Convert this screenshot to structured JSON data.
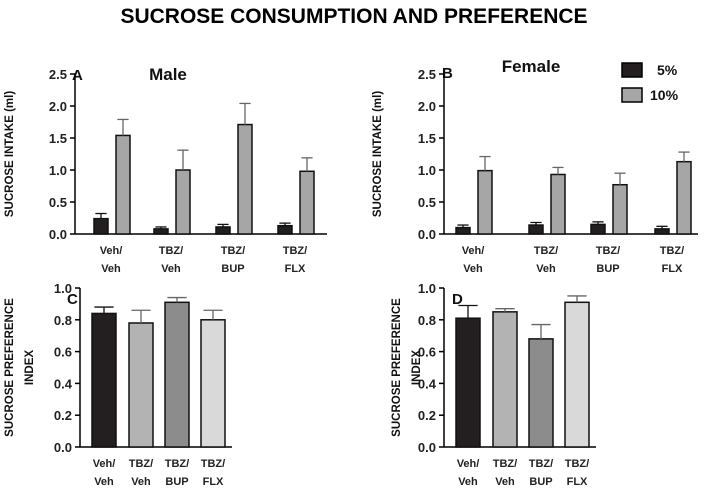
{
  "title": "SUCROSE CONSUMPTION AND PREFERENCE",
  "colors": {
    "c5": "#231f20",
    "c10": "#a6a6a6",
    "veh": "#231f20",
    "tbzveh": "#b3b3b3",
    "tbzbup": "#8c8c8c",
    "tbzflx": "#d9d9d9"
  },
  "chart_data": [
    {
      "panel": "A",
      "title": "Male",
      "type": "bar",
      "ylabel": "SUCROSE INTAKE (ml)",
      "ylim": [
        0,
        2.5
      ],
      "yticks": [
        "0.0",
        "0.5",
        "1.0",
        "1.5",
        "2.0",
        "2.5"
      ],
      "categories": [
        [
          "Veh/",
          "Veh"
        ],
        [
          "TBZ/",
          "Veh"
        ],
        [
          "TBZ/",
          "BUP"
        ],
        [
          "TBZ/",
          "FLX"
        ]
      ],
      "series": [
        {
          "name": "5%",
          "values": [
            0.24,
            0.08,
            0.11,
            0.13
          ],
          "errors": [
            0.08,
            0.03,
            0.04,
            0.04
          ]
        },
        {
          "name": "10%",
          "values": [
            1.54,
            1.0,
            1.71,
            0.98
          ],
          "errors": [
            0.25,
            0.31,
            0.33,
            0.21
          ]
        }
      ]
    },
    {
      "panel": "B",
      "title": "Female",
      "type": "bar",
      "ylabel": "SUCROSE INTAKE (ml)",
      "ylim": [
        0,
        2.5
      ],
      "yticks": [
        "0.0",
        "0.5",
        "1.0",
        "1.5",
        "2.0",
        "2.5"
      ],
      "categories": [
        [
          "Veh/",
          "Veh"
        ],
        [
          "TBZ/",
          "Veh"
        ],
        [
          "TBZ/",
          "BUP"
        ],
        [
          "TBZ/",
          "FLX"
        ]
      ],
      "series": [
        {
          "name": "5%",
          "values": [
            0.1,
            0.14,
            0.15,
            0.08
          ],
          "errors": [
            0.04,
            0.04,
            0.04,
            0.04
          ]
        },
        {
          "name": "10%",
          "values": [
            0.99,
            0.93,
            0.77,
            1.13
          ],
          "errors": [
            0.22,
            0.11,
            0.18,
            0.15
          ]
        }
      ]
    },
    {
      "panel": "C",
      "title": "",
      "type": "bar",
      "ylabel": "SUCROSE PREFERENCE INDEX",
      "ylim": [
        0,
        1.0
      ],
      "yticks": [
        "0.0",
        "0.2",
        "0.4",
        "0.6",
        "0.8",
        "1.0"
      ],
      "categories": [
        [
          "Veh/",
          "Veh"
        ],
        [
          "TBZ/",
          "Veh"
        ],
        [
          "TBZ/",
          "BUP"
        ],
        [
          "TBZ/",
          "FLX"
        ]
      ],
      "series": [
        {
          "name": "preference",
          "values": [
            0.84,
            0.78,
            0.91,
            0.8
          ],
          "errors": [
            0.04,
            0.08,
            0.03,
            0.06
          ]
        }
      ]
    },
    {
      "panel": "D",
      "title": "",
      "type": "bar",
      "ylabel": "SUCROSE PREFERENCE INDEX",
      "ylim": [
        0,
        1.0
      ],
      "yticks": [
        "0.0",
        "0.2",
        "0.4",
        "0.6",
        "0.8",
        "1.0"
      ],
      "categories": [
        [
          "Veh/",
          "Veh"
        ],
        [
          "TBZ/",
          "Veh"
        ],
        [
          "TBZ/",
          "BUP"
        ],
        [
          "TBZ/",
          "FLX"
        ]
      ],
      "series": [
        {
          "name": "preference",
          "values": [
            0.81,
            0.85,
            0.68,
            0.91
          ],
          "errors": [
            0.08,
            0.02,
            0.09,
            0.04
          ]
        }
      ]
    }
  ],
  "legend": [
    {
      "label": "5%",
      "color_key": "c5"
    },
    {
      "label": "10%",
      "color_key": "c10"
    }
  ]
}
